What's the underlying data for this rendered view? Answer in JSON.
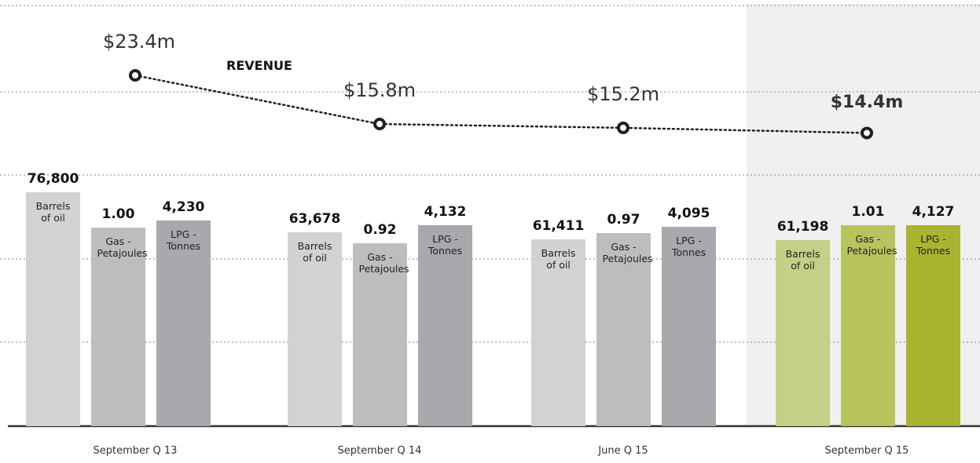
{
  "chart_data": {
    "type": "bar",
    "categories": [
      "September Q 13",
      "September Q 14",
      "June Q 15",
      "September Q 15"
    ],
    "highlight": 3,
    "series": [
      {
        "name": "Barrels of oil",
        "color": "#d1d2d4",
        "highlight_color": "#c4cf88",
        "values": [
          76800,
          63678,
          61411,
          61198
        ],
        "value_labels": [
          "76,800",
          "63,678",
          "61,411",
          "61,198"
        ]
      },
      {
        "name": "Gas - Petajoules",
        "color": "#bcbdbf",
        "highlight_color": "#b9c35c",
        "values": [
          1.0,
          0.92,
          0.97,
          1.01
        ],
        "value_labels": [
          "1.00",
          "0.92",
          "0.97",
          "1.01"
        ]
      },
      {
        "name": "LPG - Tonnes",
        "color": "#a7a9ac",
        "highlight_color": "#a9b531",
        "values": [
          4230,
          4132,
          4095,
          4127
        ],
        "value_labels": [
          "4,230",
          "4,132",
          "4,095",
          "4,127"
        ]
      }
    ],
    "line": {
      "type": "line",
      "name": "REVENUE",
      "color": "#231f20",
      "values": [
        23.4,
        15.8,
        15.2,
        14.4
      ],
      "value_labels": [
        "$23.4m",
        "$15.8m",
        "$15.2m",
        "$14.4m"
      ]
    }
  }
}
